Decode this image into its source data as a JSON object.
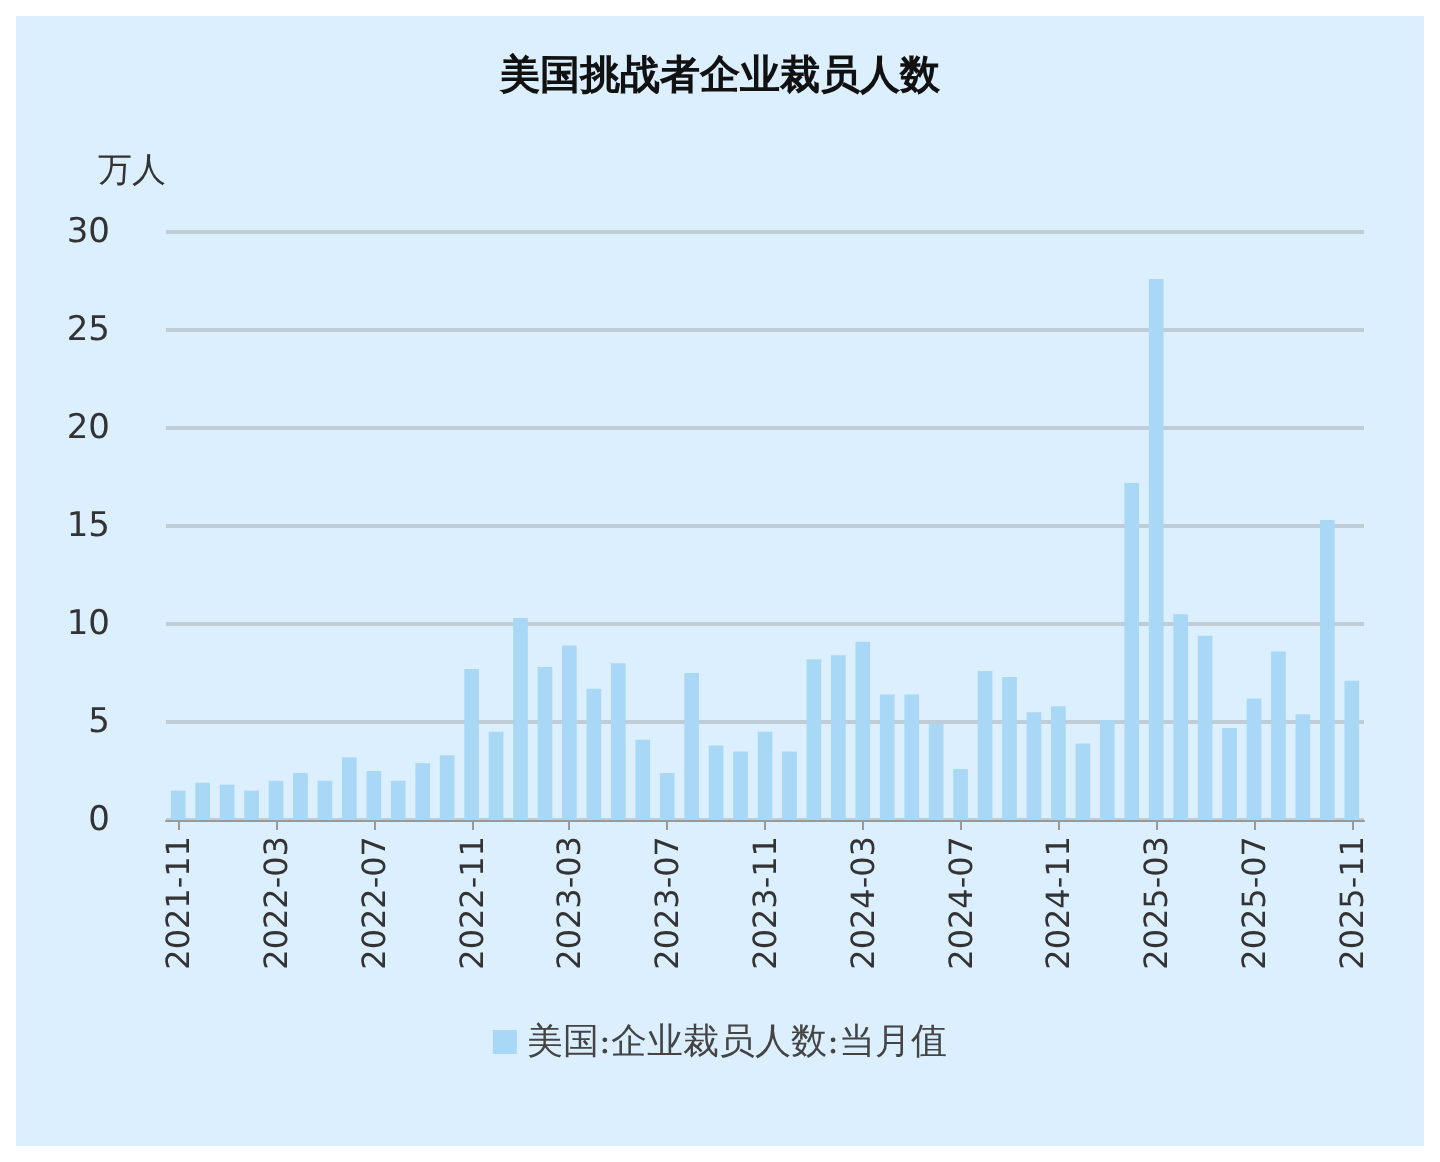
{
  "chart_data": {
    "type": "bar",
    "title": "美国挑战者企业裁员人数",
    "ylabel": "万人",
    "categories": [
      "2021-11",
      null,
      null,
      null,
      "2022-03",
      null,
      null,
      null,
      "2022-07",
      null,
      null,
      null,
      "2022-11",
      null,
      null,
      null,
      "2023-03",
      null,
      null,
      null,
      "2023-07",
      null,
      null,
      null,
      "2023-11",
      null,
      null,
      null,
      "2024-03",
      null,
      null,
      null,
      "2024-07",
      null,
      null,
      null,
      "2024-11",
      null,
      null,
      null,
      "2025-03",
      null,
      null,
      null,
      "2025-07",
      null,
      null,
      null,
      "2025-11"
    ],
    "series": [
      {
        "name": "美国:企业裁员人数:当月值",
        "color": "#a8d8f5",
        "values": [
          1.5,
          1.9,
          1.8,
          1.5,
          2.0,
          2.4,
          2.0,
          3.2,
          2.5,
          2.0,
          2.9,
          3.3,
          7.7,
          4.5,
          10.3,
          7.8,
          8.9,
          6.7,
          8.0,
          4.1,
          2.4,
          7.5,
          3.8,
          3.5,
          4.5,
          3.5,
          8.2,
          8.4,
          9.1,
          6.4,
          6.4,
          4.9,
          2.6,
          7.6,
          7.3,
          5.5,
          5.8,
          3.9,
          5.1,
          17.2,
          27.6,
          10.5,
          9.4,
          4.7,
          6.2,
          8.6,
          5.4,
          15.3,
          7.1
        ]
      }
    ],
    "ylim": [
      0,
      30
    ],
    "yticks": [
      0,
      5,
      10,
      15,
      20,
      25,
      30
    ],
    "grid": "y",
    "legend": "bottom"
  }
}
